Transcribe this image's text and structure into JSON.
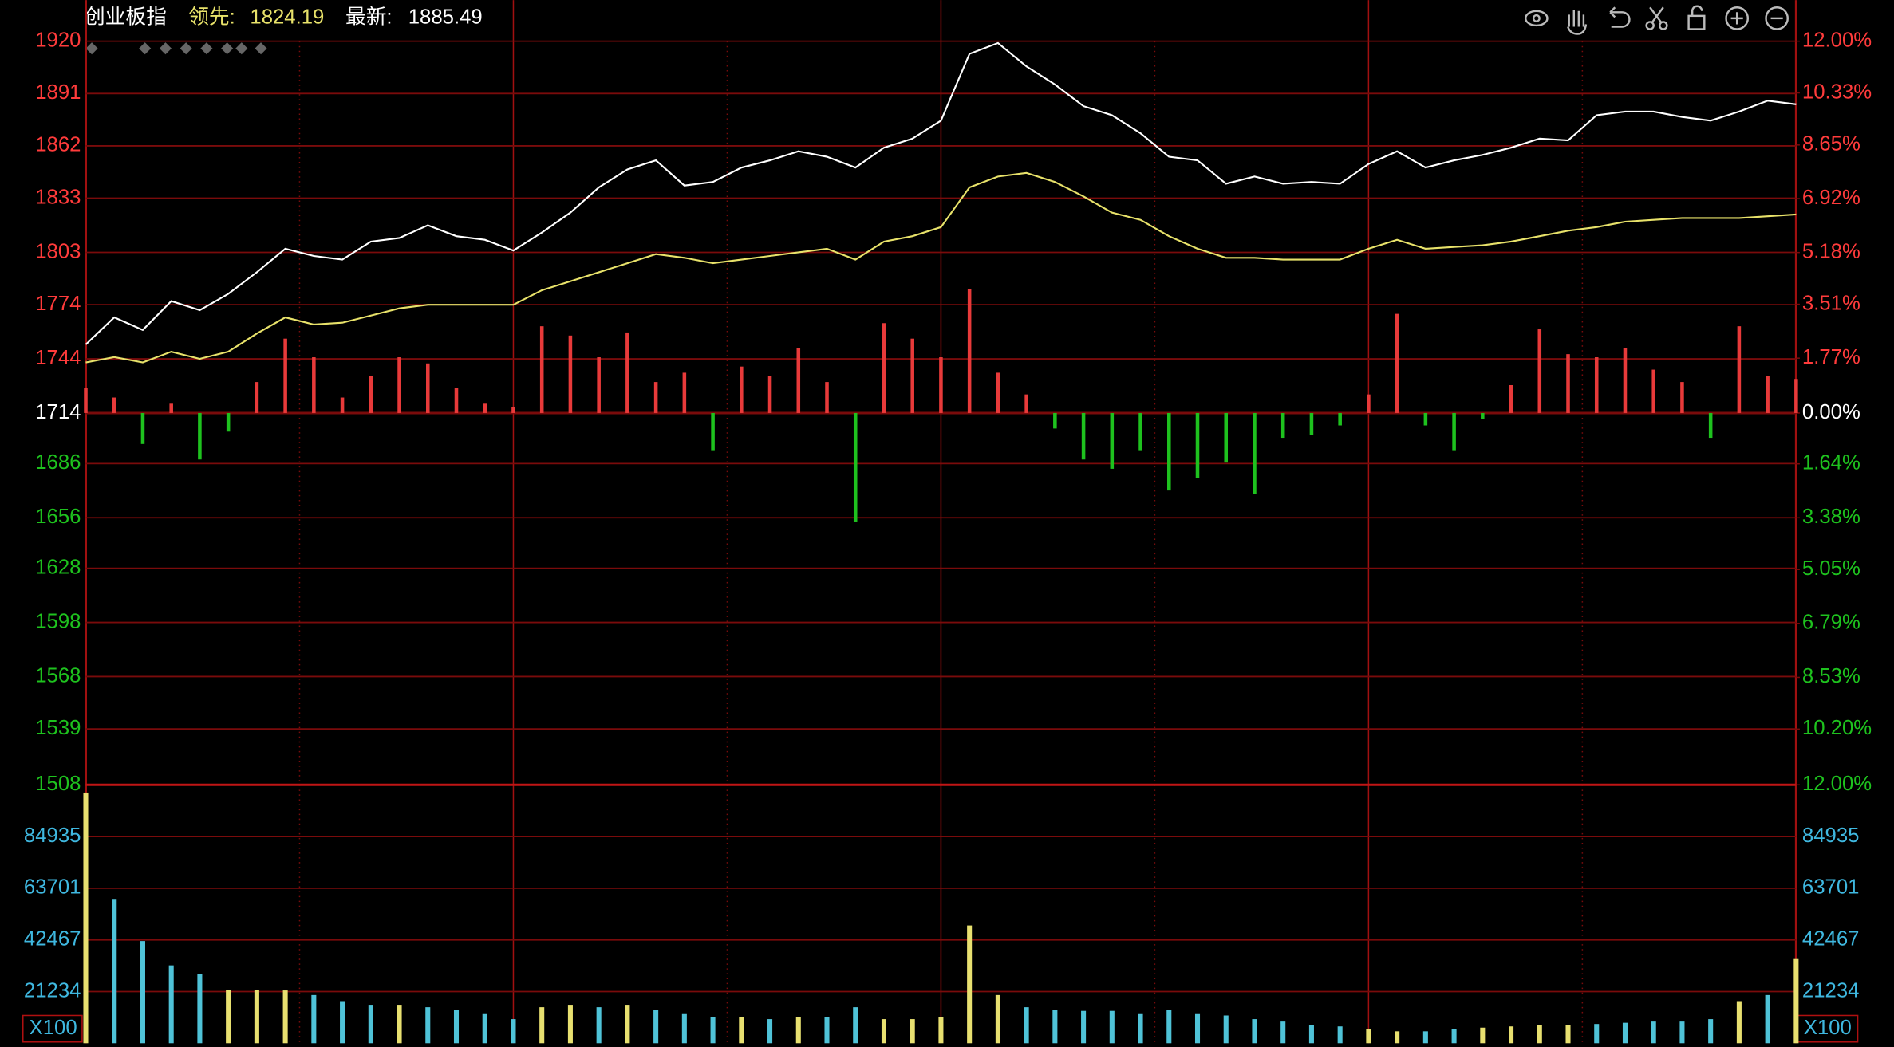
{
  "header": {
    "name": "创业板指",
    "lead_label": "领先:",
    "lead_value": "1824.19",
    "latest_label": "最新:",
    "latest_value": "1885.49"
  },
  "chart_data": [
    {
      "type": "line",
      "ylim": [
        1508,
        1920
      ],
      "yticks": [
        1920,
        1891,
        1862,
        1833,
        1803,
        1774,
        1744,
        1714,
        1686,
        1656,
        1628,
        1598,
        1568,
        1539,
        1508
      ],
      "y2lim": [
        -12,
        12
      ],
      "y2ticks": [
        {
          "value": 12,
          "label": "12.00%"
        },
        {
          "value": 10.33,
          "label": "10.33%"
        },
        {
          "value": 8.65,
          "label": "8.65%"
        },
        {
          "value": 6.92,
          "label": "6.92%"
        },
        {
          "value": 5.18,
          "label": "5.18%"
        },
        {
          "value": 3.51,
          "label": "3.51%"
        },
        {
          "value": 1.77,
          "label": "1.77%"
        },
        {
          "value": 0,
          "label": "0.00%"
        },
        {
          "value": -1.64,
          "label": "1.64%"
        },
        {
          "value": -3.38,
          "label": "3.38%"
        },
        {
          "value": -5.05,
          "label": "5.05%"
        },
        {
          "value": -6.79,
          "label": "6.79%"
        },
        {
          "value": -8.53,
          "label": "8.53%"
        },
        {
          "value": -10.2,
          "label": "10.20%"
        },
        {
          "value": -12,
          "label": "12.00%"
        }
      ],
      "grid": true,
      "series": [
        {
          "color": "#ffffff",
          "values": [
            1752,
            1767,
            1760,
            1776,
            1771,
            1780,
            1792,
            1805,
            1801,
            1799,
            1809,
            1811,
            1818,
            1812,
            1810,
            1804,
            1814,
            1825,
            1839,
            1849,
            1854,
            1840,
            1842,
            1850,
            1854,
            1859,
            1856,
            1850,
            1861,
            1866,
            1876,
            1913,
            1919,
            1906,
            1896,
            1884,
            1879,
            1869,
            1856,
            1854,
            1841,
            1845,
            1841,
            1842,
            1841,
            1852,
            1859,
            1850,
            1854,
            1857,
            1861,
            1866,
            1865,
            1879,
            1881,
            1881,
            1878,
            1876,
            1881,
            1887,
            1885
          ]
        },
        {
          "color": "#e8e26a",
          "values": [
            1742,
            1745,
            1742,
            1748,
            1744,
            1748,
            1758,
            1767,
            1763,
            1764,
            1768,
            1772,
            1774,
            1774,
            1774,
            1774,
            1782,
            1787,
            1792,
            1797,
            1802,
            1800,
            1797,
            1799,
            1801,
            1803,
            1805,
            1799,
            1809,
            1812,
            1817,
            1839,
            1845,
            1847,
            1842,
            1834,
            1825,
            1821,
            1812,
            1805,
            1800,
            1800,
            1799,
            1799,
            1799,
            1805,
            1810,
            1805,
            1806,
            1807,
            1809,
            1812,
            1815,
            1817,
            1820,
            1821,
            1822,
            1822,
            1822,
            1823,
            1824
          ]
        },
        {
          "type": "bar",
          "axis": "y2",
          "up_color": "#e83a3a",
          "down_color": "#1ec21e",
          "values": [
            0.8,
            0.5,
            -1.0,
            0.3,
            -1.5,
            -0.6,
            1.0,
            2.4,
            1.8,
            0.5,
            1.2,
            1.8,
            1.6,
            0.8,
            0.3,
            0.2,
            2.8,
            2.5,
            1.8,
            2.6,
            1.0,
            1.3,
            -1.2,
            1.5,
            1.2,
            2.1,
            1.0,
            -3.5,
            2.9,
            2.4,
            1.8,
            4.0,
            1.3,
            0.6,
            -0.5,
            -1.5,
            -1.8,
            -1.2,
            -2.5,
            -2.1,
            -1.6,
            -2.6,
            -0.8,
            -0.7,
            -0.4,
            0.6,
            3.2,
            -0.4,
            -1.2,
            -0.2,
            0.9,
            2.7,
            1.9,
            1.8,
            2.1,
            1.4,
            1.0,
            -0.8,
            2.8,
            1.2,
            1.1
          ]
        }
      ]
    },
    {
      "type": "bar",
      "ylim": [
        0,
        106168
      ],
      "yticks": [
        84935,
        63701,
        42467,
        21234
      ],
      "unit_label": "X100",
      "values": [
        103000,
        59000,
        42000,
        32000,
        28600,
        22000,
        22000,
        21700,
        19800,
        17300,
        15800,
        15800,
        14800,
        13800,
        12300,
        9900,
        14800,
        15800,
        14800,
        15800,
        13800,
        12300,
        10900,
        10900,
        9900,
        10900,
        10900,
        14800,
        9900,
        9900,
        10900,
        48400,
        19800,
        14800,
        13800,
        13300,
        13300,
        12300,
        13800,
        12300,
        11400,
        9900,
        8900,
        7400,
        6900,
        5900,
        4900,
        4900,
        5900,
        6400,
        6900,
        7400,
        7400,
        7900,
        8400,
        8900,
        8900,
        9900,
        17300,
        19800,
        34600
      ],
      "colors": [
        "#e8e070",
        "#4fc3d8",
        "#4fc3d8",
        "#4fc3d8",
        "#4fc3d8",
        "#e8e070",
        "#e8e070",
        "#e8e070",
        "#4fc3d8",
        "#4fc3d8",
        "#4fc3d8",
        "#e8e070",
        "#4fc3d8",
        "#4fc3d8",
        "#4fc3d8",
        "#4fc3d8",
        "#e8e070",
        "#e8e070",
        "#4fc3d8",
        "#e8e070",
        "#4fc3d8",
        "#4fc3d8",
        "#4fc3d8",
        "#e8e070",
        "#4fc3d8",
        "#e8e070",
        "#4fc3d8",
        "#4fc3d8",
        "#e8e070",
        "#e8e070",
        "#e8e070",
        "#e8e070",
        "#e8e070",
        "#4fc3d8",
        "#4fc3d8",
        "#4fc3d8",
        "#4fc3d8",
        "#4fc3d8",
        "#4fc3d8",
        "#4fc3d8",
        "#4fc3d8",
        "#4fc3d8",
        "#4fc3d8",
        "#4fc3d8",
        "#4fc3d8",
        "#e8e070",
        "#e8e070",
        "#4fc3d8",
        "#4fc3d8",
        "#e8e070",
        "#e8e070",
        "#e8e070",
        "#e8e070",
        "#4fc3d8",
        "#4fc3d8",
        "#4fc3d8",
        "#4fc3d8",
        "#4fc3d8",
        "#e8e070",
        "#4fc3d8",
        "#e8e070"
      ]
    }
  ]
}
